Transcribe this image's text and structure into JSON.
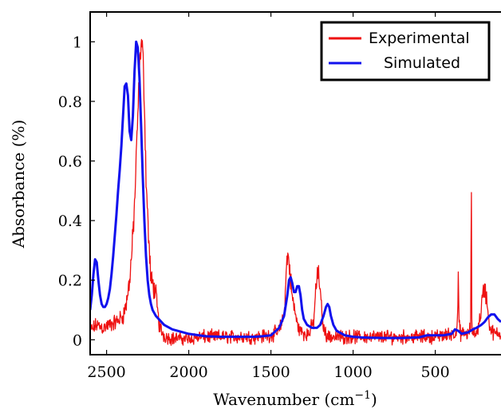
{
  "chart_data": {
    "type": "line",
    "title": "",
    "xlabel": "Wavenumber (cm",
    "xlabel_sup": "−1",
    "xlabel_close": ")",
    "ylabel": "Absorbance (%)",
    "xlim": [
      2600,
      100
    ],
    "ylim": [
      -0.05,
      1.1
    ],
    "x_reversed": true,
    "x_ticks": [
      {
        "value": 2500,
        "label": "2500"
      },
      {
        "value": 2000,
        "label": "2000"
      },
      {
        "value": 1500,
        "label": "1500"
      },
      {
        "value": 1000,
        "label": "1000"
      },
      {
        "value": 500,
        "label": "500"
      }
    ],
    "y_ticks": [
      {
        "value": 0,
        "label": "0"
      },
      {
        "value": 0.2,
        "label": "0.2"
      },
      {
        "value": 0.4,
        "label": "0.4"
      },
      {
        "value": 0.6,
        "label": "0.6"
      },
      {
        "value": 0.8,
        "label": "0.8"
      },
      {
        "value": 1,
        "label": "1"
      }
    ],
    "grid": false,
    "legend_position": "top-right",
    "series": [
      {
        "name": "Experimental",
        "color": "#ee1111",
        "noisy": true,
        "x": [
          2600,
          2560,
          2520,
          2480,
          2440,
          2400,
          2380,
          2360,
          2345,
          2330,
          2320,
          2310,
          2300,
          2290,
          2280,
          2270,
          2260,
          2245,
          2230,
          2215,
          2200,
          2190,
          2180,
          2160,
          2140,
          2100,
          2000,
          1900,
          1800,
          1700,
          1600,
          1500,
          1450,
          1420,
          1410,
          1400,
          1395,
          1390,
          1380,
          1370,
          1355,
          1340,
          1320,
          1300,
          1270,
          1240,
          1225,
          1215,
          1205,
          1195,
          1185,
          1175,
          1165,
          1150,
          1130,
          1100,
          1000,
          900,
          800,
          700,
          600,
          500,
          400,
          380,
          365,
          360,
          355,
          345,
          320,
          295,
          285,
          280,
          278,
          272,
          265,
          245,
          225,
          212,
          200,
          190,
          180,
          170,
          160,
          140,
          120,
          100
        ],
        "y": [
          0.03,
          0.05,
          0.04,
          0.05,
          0.06,
          0.08,
          0.12,
          0.2,
          0.3,
          0.45,
          0.6,
          0.75,
          0.9,
          1.0,
          0.97,
          0.8,
          0.55,
          0.35,
          0.2,
          0.18,
          0.15,
          0.1,
          0.05,
          0.02,
          0.01,
          0.005,
          0.005,
          0.01,
          0.01,
          0.01,
          0.01,
          0.015,
          0.03,
          0.08,
          0.2,
          0.28,
          0.28,
          0.26,
          0.2,
          0.14,
          0.1,
          0.05,
          0.03,
          0.02,
          0.02,
          0.06,
          0.18,
          0.22,
          0.2,
          0.12,
          0.06,
          0.03,
          0.02,
          0.01,
          0.01,
          0.01,
          0.01,
          0.01,
          0.01,
          0.01,
          0.01,
          0.01,
          0.02,
          0.02,
          0.05,
          0.22,
          0.05,
          0.02,
          0.02,
          0.02,
          0.05,
          0.5,
          0.05,
          0.02,
          0.02,
          0.03,
          0.08,
          0.15,
          0.17,
          0.15,
          0.1,
          0.05,
          0.03,
          0.02,
          0.02,
          0.02
        ]
      },
      {
        "name": "Simulated",
        "color": "#1111ee",
        "noisy": false,
        "x": [
          2600,
          2590,
          2580,
          2570,
          2560,
          2550,
          2540,
          2530,
          2520,
          2510,
          2500,
          2490,
          2480,
          2470,
          2460,
          2450,
          2440,
          2430,
          2420,
          2410,
          2400,
          2390,
          2380,
          2370,
          2360,
          2350,
          2340,
          2330,
          2320,
          2310,
          2300,
          2290,
          2280,
          2270,
          2260,
          2250,
          2240,
          2230,
          2220,
          2200,
          2150,
          2100,
          2000,
          1900,
          1800,
          1700,
          1600,
          1550,
          1500,
          1450,
          1420,
          1400,
          1390,
          1380,
          1370,
          1360,
          1350,
          1340,
          1330,
          1320,
          1310,
          1300,
          1280,
          1250,
          1220,
          1200,
          1180,
          1165,
          1155,
          1145,
          1135,
          1120,
          1100,
          1050,
          1000,
          950,
          900,
          800,
          700,
          600,
          550,
          500,
          450,
          400,
          380,
          360,
          340,
          300,
          270,
          250,
          220,
          200,
          180,
          160,
          140,
          120,
          100
        ],
        "y": [
          0.1,
          0.15,
          0.22,
          0.27,
          0.26,
          0.2,
          0.15,
          0.12,
          0.11,
          0.11,
          0.12,
          0.14,
          0.17,
          0.22,
          0.28,
          0.35,
          0.42,
          0.5,
          0.57,
          0.65,
          0.75,
          0.85,
          0.86,
          0.82,
          0.7,
          0.67,
          0.75,
          0.9,
          1.0,
          0.98,
          0.88,
          0.72,
          0.55,
          0.4,
          0.28,
          0.2,
          0.15,
          0.12,
          0.1,
          0.08,
          0.05,
          0.035,
          0.02,
          0.012,
          0.01,
          0.01,
          0.01,
          0.012,
          0.015,
          0.04,
          0.08,
          0.15,
          0.2,
          0.21,
          0.19,
          0.16,
          0.16,
          0.18,
          0.18,
          0.15,
          0.1,
          0.07,
          0.05,
          0.04,
          0.04,
          0.05,
          0.08,
          0.11,
          0.12,
          0.11,
          0.08,
          0.05,
          0.03,
          0.015,
          0.01,
          0.008,
          0.007,
          0.006,
          0.006,
          0.008,
          0.015,
          0.015,
          0.015,
          0.02,
          0.035,
          0.03,
          0.02,
          0.025,
          0.035,
          0.04,
          0.05,
          0.06,
          0.075,
          0.085,
          0.085,
          0.07,
          0.06
        ]
      }
    ]
  }
}
